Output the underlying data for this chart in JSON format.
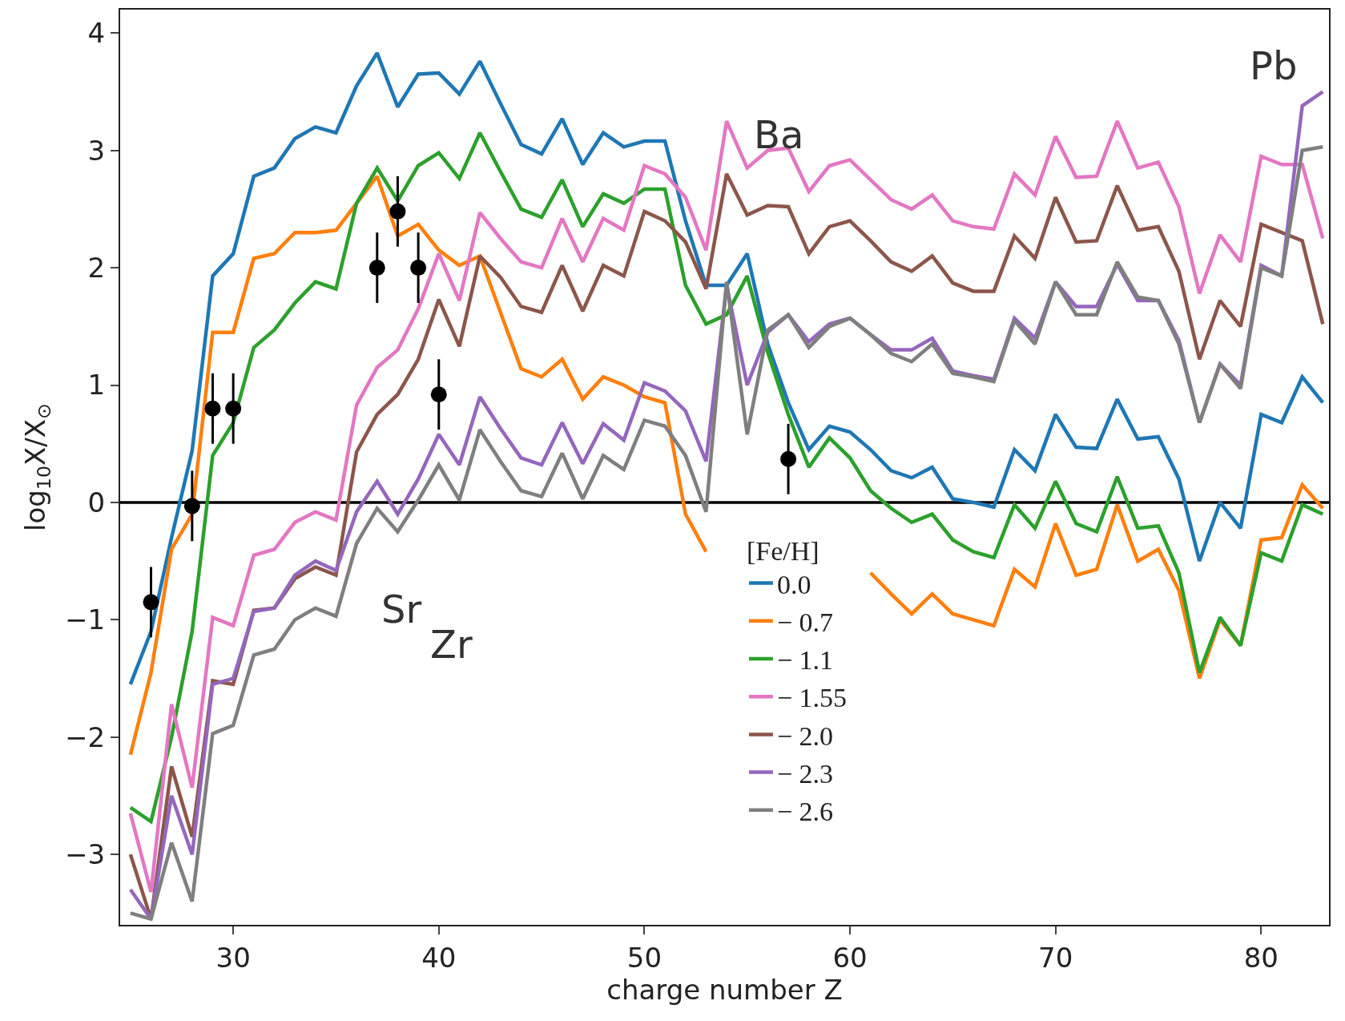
{
  "chart_data": {
    "type": "line",
    "xlabel": "charge number Z",
    "ylabel": "log$_{10}$X/X$_{⊙}$",
    "x": [
      25,
      26,
      27,
      28,
      29,
      30,
      31,
      32,
      33,
      34,
      35,
      36,
      37,
      38,
      39,
      40,
      41,
      42,
      43,
      44,
      45,
      46,
      47,
      48,
      49,
      50,
      51,
      52,
      53,
      54,
      55,
      56,
      57,
      58,
      59,
      60,
      61,
      62,
      63,
      64,
      65,
      66,
      67,
      68,
      69,
      70,
      71,
      72,
      73,
      74,
      75,
      76,
      77,
      78,
      79,
      80,
      81,
      82,
      83
    ],
    "xlim": [
      24.5,
      83.3
    ],
    "xticks": [
      30,
      40,
      50,
      60,
      70,
      80
    ],
    "ylim": [
      -3.6,
      4.2
    ],
    "yticks": [
      {
        "value": -3,
        "label": "−3"
      },
      {
        "value": -2,
        "label": "−2"
      },
      {
        "value": -1,
        "label": "−1"
      },
      0,
      1,
      2,
      3,
      4
    ],
    "grid": false,
    "marker": "none",
    "line_style": "solid",
    "legend": "bottom",
    "legend_title": "[Fe/H]",
    "ref_lines": [
      {
        "axis": "y",
        "value": 0,
        "color": "#000000"
      }
    ],
    "annotations": [
      "Sr",
      "Zr",
      "Ba",
      "Pb"
    ],
    "series": [
      {
        "name": "0.0",
        "color": "#1f77b4",
        "values": [
          -1.55,
          -1.1,
          -0.3,
          0.44,
          1.93,
          2.12,
          2.78,
          2.85,
          3.1,
          3.2,
          3.15,
          3.55,
          3.83,
          3.37,
          3.65,
          3.66,
          3.48,
          3.76,
          3.4,
          3.05,
          2.97,
          3.27,
          2.88,
          3.15,
          3.03,
          3.08,
          3.08,
          2.4,
          1.85,
          1.85,
          2.12,
          1.35,
          0.85,
          0.45,
          0.65,
          0.6,
          0.45,
          0.27,
          0.21,
          0.3,
          0.03,
          0.0,
          -0.04,
          0.45,
          0.27,
          0.75,
          0.47,
          0.46,
          0.88,
          0.54,
          0.56,
          0.2,
          -0.5,
          0.0,
          -0.22,
          0.75,
          0.68,
          1.07,
          0.85
        ]
      },
      {
        "name": "− 0.7",
        "color": "#ff7f0e",
        "values": [
          -2.15,
          -1.45,
          -0.4,
          -0.1,
          1.45,
          1.45,
          2.08,
          2.12,
          2.3,
          2.3,
          2.32,
          2.55,
          2.78,
          2.27,
          2.37,
          2.15,
          2.02,
          2.1,
          1.62,
          1.14,
          1.07,
          1.22,
          0.88,
          1.07,
          1.0,
          0.9,
          0.85,
          -0.1,
          -0.42,
          null,
          null,
          null,
          null,
          null,
          null,
          null,
          -0.6,
          -0.78,
          -0.95,
          -0.78,
          -0.95,
          -1.0,
          -1.05,
          -0.57,
          -0.72,
          -0.18,
          -0.62,
          -0.57,
          -0.02,
          -0.5,
          -0.4,
          -0.75,
          -1.5,
          -1.0,
          -1.22,
          -0.32,
          -0.3,
          0.15,
          -0.05
        ]
      },
      {
        "name": "− 1.1",
        "color": "#2ca02c",
        "values": [
          -2.6,
          -2.72,
          -2.0,
          -1.1,
          0.4,
          0.68,
          1.32,
          1.47,
          1.7,
          1.88,
          1.82,
          2.55,
          2.85,
          2.57,
          2.87,
          2.98,
          2.76,
          3.15,
          2.82,
          2.5,
          2.43,
          2.75,
          2.35,
          2.63,
          2.55,
          2.67,
          2.67,
          1.85,
          1.52,
          1.6,
          1.93,
          1.28,
          0.75,
          0.3,
          0.55,
          0.38,
          0.1,
          -0.05,
          -0.17,
          -0.1,
          -0.32,
          -0.42,
          -0.47,
          -0.02,
          -0.22,
          0.18,
          -0.18,
          -0.25,
          0.22,
          -0.22,
          -0.2,
          -0.6,
          -1.45,
          -0.98,
          -1.22,
          -0.43,
          -0.5,
          -0.02,
          -0.1
        ]
      },
      {
        "name": "− 1.55",
        "color": "#e377c2",
        "values": [
          -2.65,
          -3.32,
          -1.72,
          -2.43,
          -0.98,
          -1.05,
          -0.45,
          -0.4,
          -0.17,
          -0.08,
          -0.15,
          0.83,
          1.15,
          1.3,
          1.65,
          2.12,
          1.72,
          2.47,
          2.25,
          2.05,
          2.0,
          2.42,
          2.05,
          2.42,
          2.32,
          2.87,
          2.8,
          2.6,
          2.15,
          3.25,
          2.85,
          3.0,
          3.02,
          2.65,
          2.87,
          2.92,
          2.75,
          2.58,
          2.5,
          2.62,
          2.4,
          2.35,
          2.33,
          2.8,
          2.62,
          3.12,
          2.77,
          2.78,
          3.25,
          2.85,
          2.9,
          2.52,
          1.78,
          2.28,
          2.05,
          2.95,
          2.88,
          2.88,
          2.25
        ]
      },
      {
        "name": "− 2.0",
        "color": "#8c564b",
        "values": [
          -3.0,
          -3.55,
          -2.25,
          -2.85,
          -1.52,
          -1.55,
          -0.92,
          -0.9,
          -0.65,
          -0.55,
          -0.62,
          0.43,
          0.75,
          0.92,
          1.22,
          1.73,
          1.33,
          2.1,
          1.92,
          1.67,
          1.62,
          2.02,
          1.63,
          2.02,
          1.93,
          2.48,
          2.4,
          2.22,
          1.82,
          2.8,
          2.45,
          2.53,
          2.52,
          2.12,
          2.35,
          2.4,
          2.23,
          2.05,
          1.97,
          2.1,
          1.87,
          1.8,
          1.8,
          2.27,
          2.08,
          2.6,
          2.22,
          2.23,
          2.7,
          2.32,
          2.35,
          1.97,
          1.22,
          1.72,
          1.5,
          2.37,
          2.3,
          2.23,
          1.52
        ]
      },
      {
        "name": "− 2.3",
        "color": "#9467bd",
        "values": [
          -3.3,
          -3.55,
          -2.5,
          -3.0,
          -1.55,
          -1.5,
          -0.93,
          -0.9,
          -0.62,
          -0.5,
          -0.58,
          -0.08,
          0.18,
          -0.1,
          0.2,
          0.58,
          0.32,
          0.9,
          0.63,
          0.38,
          0.32,
          0.68,
          0.33,
          0.67,
          0.53,
          1.02,
          0.95,
          0.78,
          0.35,
          1.85,
          1.0,
          1.45,
          1.6,
          1.37,
          1.52,
          1.57,
          1.43,
          1.3,
          1.3,
          1.4,
          1.12,
          1.08,
          1.05,
          1.57,
          1.4,
          1.88,
          1.67,
          1.67,
          2.03,
          1.72,
          1.72,
          1.38,
          0.68,
          1.18,
          1.0,
          2.02,
          1.93,
          3.38,
          3.5
        ]
      },
      {
        "name": "− 2.6",
        "color": "#7f7f7f",
        "values": [
          -3.5,
          -3.55,
          -2.9,
          -3.4,
          -1.97,
          -1.9,
          -1.3,
          -1.25,
          -1.0,
          -0.9,
          -0.97,
          -0.35,
          -0.05,
          -0.25,
          0.02,
          0.32,
          0.02,
          0.62,
          0.35,
          0.1,
          0.05,
          0.42,
          0.03,
          0.4,
          0.28,
          0.7,
          0.65,
          0.4,
          -0.08,
          1.88,
          0.58,
          1.47,
          1.6,
          1.32,
          1.5,
          1.57,
          1.43,
          1.27,
          1.2,
          1.35,
          1.1,
          1.07,
          1.03,
          1.55,
          1.35,
          1.88,
          1.6,
          1.6,
          2.05,
          1.75,
          1.72,
          1.35,
          0.68,
          1.18,
          0.97,
          2.0,
          1.93,
          3.0,
          3.03
        ]
      },
      {
        "type": "scatter",
        "color": "#000000",
        "marker": "circle",
        "x": [
          26,
          28,
          29,
          30,
          37,
          38,
          39,
          40,
          57
        ],
        "values": [
          -0.85,
          -0.03,
          0.8,
          0.8,
          2.0,
          2.48,
          2.0,
          0.92,
          0.37
        ],
        "errors": [
          0.3,
          0.3,
          0.3,
          0.3,
          0.3,
          0.3,
          0.3,
          0.3,
          0.3
        ]
      }
    ]
  }
}
